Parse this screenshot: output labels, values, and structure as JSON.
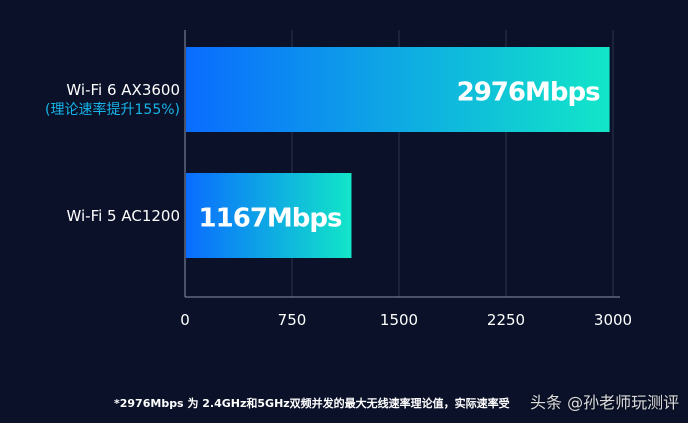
{
  "chart_data": {
    "type": "bar",
    "orientation": "horizontal",
    "categories": [
      "Wi-Fi 6 AX3600",
      "Wi-Fi 5 AC1200"
    ],
    "category_sublabels": [
      "(理论速率提升155%)",
      ""
    ],
    "values": [
      2976,
      1167
    ],
    "data_labels": [
      "2976Mbps",
      "1167Mbps"
    ],
    "xlim": [
      0,
      3000
    ],
    "xticks": [
      0,
      750,
      1500,
      2250,
      3000
    ],
    "grid": true,
    "colors": {
      "bar_start": "#0a6cff",
      "bar_end": "#12e6c8",
      "background": "#0a1128",
      "sublabel": "#16b4e8"
    }
  },
  "footnote": "*2976Mbps 为 2.4GHz和5GHz双频并发的最大无线速率理论值，实际速率受",
  "watermark": "头条 @孙老师玩测评"
}
